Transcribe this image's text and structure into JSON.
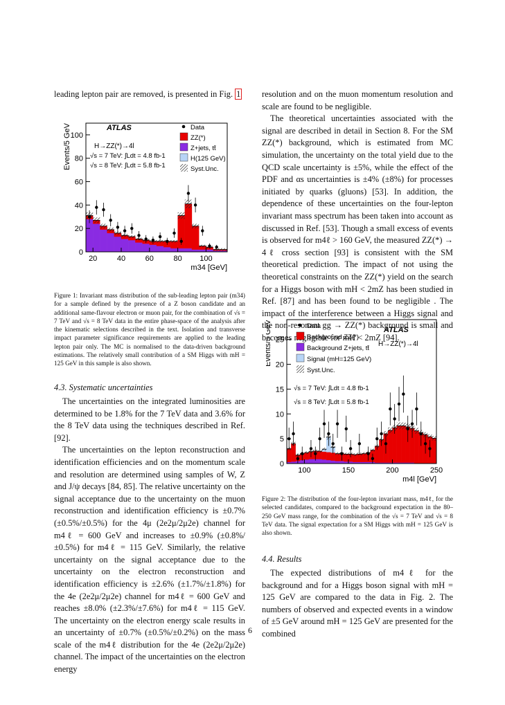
{
  "left": {
    "top_line_pre": "leading lepton pair are removed, is presented in Fig.",
    "top_line_ref": "1",
    "fig1_caption": "Figure 1: Invariant mass distribution of the sub-leading lepton pair (m34) for a sample defined by the presence of a Z boson candidate and an additional same-flavour electron or muon pair, for the combination of √s = 7 TeV and √s = 8 TeV data in the entire phase-space of the analysis after the kinematic selections described in the text. Isolation and transverse impact parameter significance requirements are applied to the leading lepton pair only. The MC is normalised to the data-driven background estimations. The relatively small contribution of a SM Higgs with mH = 125 GeV in this sample is also shown.",
    "section_title": "4.3. Systematic uncertainties",
    "p1": "The uncertainties on the integrated luminosities are determined to be 1.8% for the 7 TeV data and 3.6% for the 8 TeV data using the techniques described in Ref. [92].",
    "p2": "The uncertainties on the lepton reconstruction and identification efficiencies and on the momentum scale and resolution are determined using samples of W, Z and J/ψ decays [84, 85]. The relative uncertainty on the signal acceptance due to the uncertainty on the muon reconstruction and identification efficiency is ±0.7% (±0.5%/±0.5%) for the 4μ (2e2μ/2μ2e) channel for m4ℓ = 600 GeV and increases to ±0.9% (±0.8%/±0.5%) for m4ℓ = 115 GeV. Similarly, the relative uncertainty on the signal acceptance due to the uncertainty on the electron reconstruction and identification efficiency is ±2.6% (±1.7%/±1.8%) for the 4e (2e2μ/2μ2e) channel for m4ℓ = 600 GeV and reaches ±8.0% (±2.3%/±7.6%) for m4ℓ = 115 GeV. The uncertainty on the electron energy scale results in an uncertainty of ±0.7% (±0.5%/±0.2%) on the mass scale of the m4ℓ distribution for the 4e (2e2μ/2μ2e) channel. The impact of the uncertainties on the electron energy"
  },
  "right": {
    "p0": "resolution and on the muon momentum resolution and scale are found to be negligible.",
    "p1": "The theoretical uncertainties associated with the signal are described in detail in Section 8. For the SM ZZ(*) background, which is estimated from MC simulation, the uncertainty on the total yield due to the QCD scale uncertainty is ±5%, while the effect of the PDF and αs uncertainties is ±4% (±8%) for processes initiated by quarks (gluons) [53]. In addition, the dependence of these uncertainties on the four-lepton invariant mass spectrum has been taken into account as discussed in Ref. [53]. Though a small excess of events is observed for m4ℓ > 160 GeV, the measured ZZ(*) → 4ℓ cross section [93] is consistent with the SM theoretical prediction. The impact of not using the theoretical constraints on the ZZ(*) yield on the search for a Higgs boson with mH < 2mZ has been studied in Ref. [87] and has been found to be negligible . The impact of the interference between a Higgs signal and the non-resonant gg → ZZ(*) background is small and becomes negligible for mH < 2mZ [94].",
    "fig2_caption": "Figure 2: The distribution of the four-lepton invariant mass, m4ℓ, for the selected candidates, compared to the background expectation in the 80–250 GeV mass range, for the combination of the √s = 7 TeV and √s = 8 TeV data. The signal expectation for a SM Higgs with mH = 125 GeV is also shown.",
    "section_title": "4.4. Results",
    "p2": "The expected distributions of m4ℓ for the background and for a Higgs boson signal with mH = 125 GeV are compared to the data in Fig. 2. The numbers of observed and expected events in a window of ±5 GeV around mH = 125 GeV are presented for the combined"
  },
  "page_number": "6",
  "chart_data": [
    {
      "type": "bar",
      "title": "",
      "xlabel": "m34 [GeV]",
      "ylabel": "Events/5 GeV",
      "xlim": [
        15,
        115
      ],
      "ylim": [
        0,
        110
      ],
      "xticks": [
        "20",
        "40",
        "60",
        "80",
        "100"
      ],
      "yticks": [
        "0",
        "20",
        "40",
        "60",
        "80",
        "100"
      ],
      "annotations": [
        "ATLAS",
        "H→ZZ(*)→4l",
        "√s = 7 TeV: ∫Ldt = 4.8 fb-1",
        "√s = 8 TeV: ∫Ldt = 5.8 fb-1"
      ],
      "legend": [
        "Data",
        "ZZ(*)",
        "Z+jets, tt̄",
        "H(125 GeV)",
        "Syst.Unc."
      ],
      "legend_placement": "top-right",
      "bin_edges_start": 15,
      "bin_width": 5,
      "series": [
        {
          "name": "Z+jets, tt̄",
          "color": "#8a2be2",
          "values": [
            28,
            24,
            19,
            16,
            13,
            11,
            10,
            8,
            7,
            6,
            5,
            4,
            3,
            3,
            3,
            2,
            2,
            2,
            1,
            1
          ]
        },
        {
          "name": "ZZ(*)",
          "color": "#e80000",
          "values": [
            3,
            3,
            3,
            3,
            3,
            3,
            3,
            3,
            3,
            3,
            4,
            5,
            6,
            28,
            38,
            20,
            3,
            2,
            1,
            1
          ]
        },
        {
          "name": "Data",
          "x": [
            17.5,
            22.5,
            27.5,
            32.5,
            37.5,
            42.5,
            47.5,
            52.5,
            57.5,
            62.5,
            67.5,
            72.5,
            77.5,
            82.5,
            87.5,
            92.5,
            97.5,
            102.5,
            107.5
          ],
          "values": [
            30,
            38,
            36,
            27,
            21,
            18,
            20,
            14,
            11,
            10,
            13,
            9,
            16,
            9,
            50,
            40,
            18,
            5,
            4
          ]
        }
      ]
    },
    {
      "type": "bar",
      "title": "",
      "xlabel": "m4l [GeV]",
      "ylabel": "Events/5 GeV",
      "xlim": [
        80,
        250
      ],
      "ylim": [
        0,
        29
      ],
      "xticks": [
        "100",
        "150",
        "200",
        "250"
      ],
      "yticks": [
        "0",
        "5",
        "10",
        "15",
        "20",
        "25"
      ],
      "annotations": [
        "ATLAS",
        "H→ZZ(*)→4l",
        "√s = 7 TeV: ∫Ldt = 4.8 fb-1",
        "√s = 8 TeV: ∫Ldt = 5.8 fb-1"
      ],
      "legend": [
        "Data",
        "Background ZZ(*)",
        "Background Z+jets, tt̄",
        "Signal (mH=125 GeV)",
        "Syst.Unc."
      ],
      "legend_placement": "top-left",
      "bin_edges_start": 80,
      "bin_width": 5,
      "series": [
        {
          "name": "Background Z+jets, tt̄",
          "color": "#8a2be2",
          "values": [
            0.3,
            0.4,
            0.5,
            0.7,
            0.8,
            0.9,
            0.9,
            0.9,
            0.8,
            0.7,
            0.6,
            0.5,
            0.5,
            0.4,
            0.4,
            0.3,
            0.3,
            0.3,
            0.3,
            0.3,
            0.2,
            0.2,
            0.2,
            0.2,
            0.2,
            0.2,
            0.2,
            0.2,
            0.2,
            0.1,
            0.1,
            0.1,
            0.1,
            0.1
          ]
        },
        {
          "name": "Background ZZ(*)",
          "color": "#e80000",
          "values": [
            2.7,
            3.6,
            1.2,
            1.3,
            1.4,
            1.5,
            1.6,
            1.6,
            1.6,
            1.6,
            1.6,
            1.5,
            1.5,
            1.5,
            1.5,
            1.5,
            1.6,
            1.7,
            1.9,
            2.4,
            3.3,
            4.6,
            5.8,
            6.5,
            7.0,
            7.4,
            7.4,
            7.2,
            6.9,
            6.5,
            6.1,
            5.7,
            5.3,
            5.0
          ]
        },
        {
          "name": "Signal (mH=125 GeV)",
          "color": "#b7d4f6",
          "values": [
            0,
            0,
            0,
            0,
            0,
            0,
            0,
            0,
            0.5,
            3.0,
            1.1,
            0,
            0,
            0,
            0,
            0,
            0,
            0,
            0,
            0,
            0,
            0,
            0,
            0,
            0,
            0,
            0,
            0,
            0,
            0,
            0,
            0,
            0,
            0
          ]
        },
        {
          "name": "Data",
          "x": [
            82.5,
            87.5,
            92.5,
            97.5,
            107.5,
            112.5,
            117.5,
            122.5,
            127.5,
            132.5,
            137.5,
            142.5,
            147.5,
            152.5,
            162.5,
            172.5,
            177.5,
            182.5,
            187.5,
            192.5,
            197.5,
            202.5,
            207.5,
            212.5,
            217.5,
            222.5,
            227.5,
            232.5,
            237.5,
            242.5
          ],
          "values": [
            5,
            6,
            1,
            2,
            3,
            2,
            5,
            8,
            6,
            4,
            8,
            2,
            7,
            3,
            4,
            2,
            1,
            5,
            6,
            4,
            11,
            9,
            12,
            14,
            7,
            8,
            11,
            6,
            4,
            3
          ]
        }
      ]
    }
  ]
}
